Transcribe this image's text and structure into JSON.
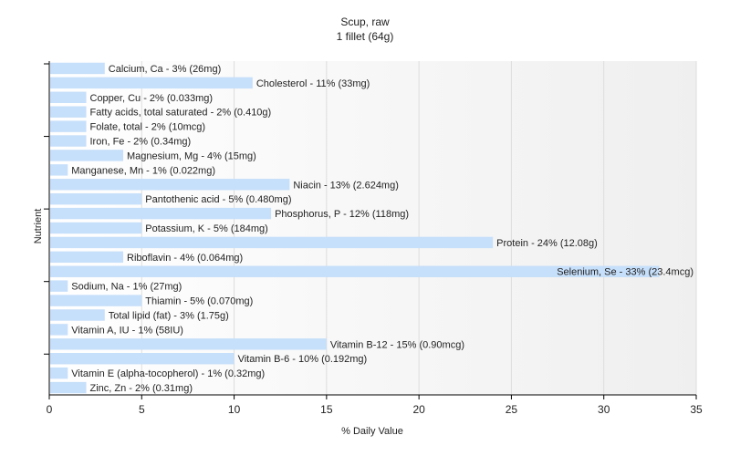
{
  "chart_data": {
    "type": "bar",
    "orientation": "horizontal",
    "title": "Scup, raw",
    "subtitle": "1 fillet (64g)",
    "xlabel": "% Daily Value",
    "ylabel": "Nutrient",
    "xlim": [
      0,
      35
    ],
    "xticks": [
      0,
      5,
      10,
      15,
      20,
      25,
      30,
      35
    ],
    "grid": "vertical",
    "bar_color": "#c6dffa",
    "categories": [
      "Calcium, Ca",
      "Cholesterol",
      "Copper, Cu",
      "Fatty acids, total saturated",
      "Folate, total",
      "Iron, Fe",
      "Magnesium, Mg",
      "Manganese, Mn",
      "Niacin",
      "Pantothenic acid",
      "Phosphorus, P",
      "Potassium, K",
      "Protein",
      "Riboflavin",
      "Selenium, Se",
      "Sodium, Na",
      "Thiamin",
      "Total lipid (fat)",
      "Vitamin A, IU",
      "Vitamin B-12",
      "Vitamin B-6",
      "Vitamin E (alpha-tocopherol)",
      "Zinc, Zn"
    ],
    "values": [
      3,
      11,
      2,
      2,
      2,
      2,
      4,
      1,
      13,
      5,
      12,
      5,
      24,
      4,
      33,
      1,
      5,
      3,
      1,
      15,
      10,
      1,
      2
    ],
    "labels": [
      "Calcium, Ca - 3% (26mg)",
      "Cholesterol - 11% (33mg)",
      "Copper, Cu - 2% (0.033mg)",
      "Fatty acids, total saturated - 2% (0.410g)",
      "Folate, total - 2% (10mcg)",
      "Iron, Fe - 2% (0.34mg)",
      "Magnesium, Mg - 4% (15mg)",
      "Manganese, Mn - 1% (0.022mg)",
      "Niacin - 13% (2.624mg)",
      "Pantothenic acid - 5% (0.480mg)",
      "Phosphorus, P - 12% (118mg)",
      "Potassium, K - 5% (184mg)",
      "Protein - 24% (12.08g)",
      "Riboflavin - 4% (0.064mg)",
      "Selenium, Se - 33% (23.4mcg)",
      "Sodium, Na - 1% (27mg)",
      "Thiamin - 5% (0.070mg)",
      "Total lipid (fat) - 3% (1.75g)",
      "Vitamin A, IU - 1% (58IU)",
      "Vitamin B-12 - 15% (0.90mcg)",
      "Vitamin B-6 - 10% (0.192mg)",
      "Vitamin E (alpha-tocopherol) - 1% (0.32mg)",
      "Zinc, Zn - 2% (0.31mg)"
    ]
  }
}
